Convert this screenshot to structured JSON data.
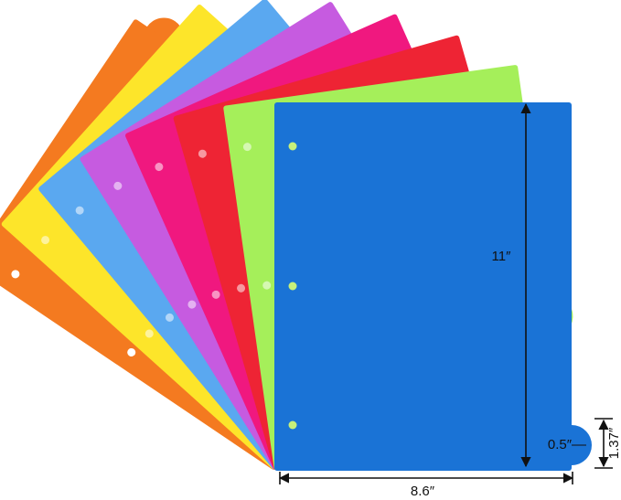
{
  "dimensions": {
    "height": "11″",
    "width": "8.6″",
    "tab_height": "1.37″",
    "tab_width": "0.5″"
  }
}
